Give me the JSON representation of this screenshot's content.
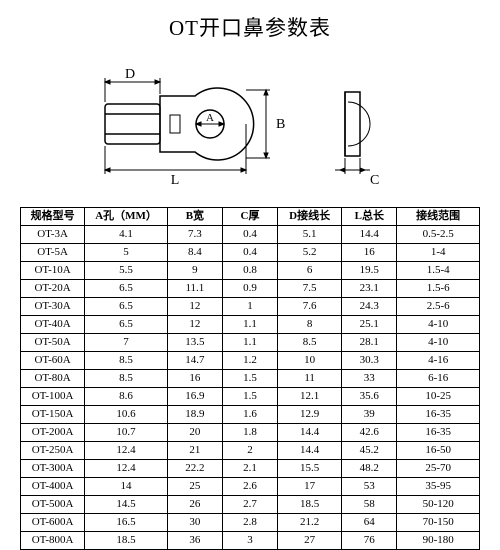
{
  "title": "OT开口鼻参数表",
  "diagram": {
    "labels": {
      "D": "D",
      "A": "A",
      "B": "B",
      "L": "L",
      "C": "C"
    },
    "stroke": "#000000",
    "fill": "#ffffff"
  },
  "table": {
    "headers": {
      "model": "规格型号",
      "a": "A孔（MM）",
      "b": "B宽",
      "c": "C厚",
      "d": "D接线长",
      "l": "L总长",
      "range": "接线范围"
    },
    "rows": [
      {
        "model": "OT-3A",
        "a": "4.1",
        "b": "7.3",
        "c": "0.4",
        "d": "5.1",
        "l": "14.4",
        "range": "0.5-2.5"
      },
      {
        "model": "OT-5A",
        "a": "5",
        "b": "8.4",
        "c": "0.4",
        "d": "5.2",
        "l": "16",
        "range": "1-4"
      },
      {
        "model": "OT-10A",
        "a": "5.5",
        "b": "9",
        "c": "0.8",
        "d": "6",
        "l": "19.5",
        "range": "1.5-4"
      },
      {
        "model": "OT-20A",
        "a": "6.5",
        "b": "11.1",
        "c": "0.9",
        "d": "7.5",
        "l": "23.1",
        "range": "1.5-6"
      },
      {
        "model": "OT-30A",
        "a": "6.5",
        "b": "12",
        "c": "1",
        "d": "7.6",
        "l": "24.3",
        "range": "2.5-6"
      },
      {
        "model": "OT-40A",
        "a": "6.5",
        "b": "12",
        "c": "1.1",
        "d": "8",
        "l": "25.1",
        "range": "4-10"
      },
      {
        "model": "OT-50A",
        "a": "7",
        "b": "13.5",
        "c": "1.1",
        "d": "8.5",
        "l": "28.1",
        "range": "4-10"
      },
      {
        "model": "OT-60A",
        "a": "8.5",
        "b": "14.7",
        "c": "1.2",
        "d": "10",
        "l": "30.3",
        "range": "4-16"
      },
      {
        "model": "OT-80A",
        "a": "8.5",
        "b": "16",
        "c": "1.5",
        "d": "11",
        "l": "33",
        "range": "6-16"
      },
      {
        "model": "OT-100A",
        "a": "8.6",
        "b": "16.9",
        "c": "1.5",
        "d": "12.1",
        "l": "35.6",
        "range": "10-25"
      },
      {
        "model": "OT-150A",
        "a": "10.6",
        "b": "18.9",
        "c": "1.6",
        "d": "12.9",
        "l": "39",
        "range": "16-35"
      },
      {
        "model": "OT-200A",
        "a": "10.7",
        "b": "20",
        "c": "1.8",
        "d": "14.4",
        "l": "42.6",
        "range": "16-35"
      },
      {
        "model": "OT-250A",
        "a": "12.4",
        "b": "21",
        "c": "2",
        "d": "14.4",
        "l": "45.2",
        "range": "16-50"
      },
      {
        "model": "OT-300A",
        "a": "12.4",
        "b": "22.2",
        "c": "2.1",
        "d": "15.5",
        "l": "48.2",
        "range": "25-70"
      },
      {
        "model": "OT-400A",
        "a": "14",
        "b": "25",
        "c": "2.6",
        "d": "17",
        "l": "53",
        "range": "35-95"
      },
      {
        "model": "OT-500A",
        "a": "14.5",
        "b": "26",
        "c": "2.7",
        "d": "18.5",
        "l": "58",
        "range": "50-120"
      },
      {
        "model": "OT-600A",
        "a": "16.5",
        "b": "30",
        "c": "2.8",
        "d": "21.2",
        "l": "64",
        "range": "70-150"
      },
      {
        "model": "OT-800A",
        "a": "18.5",
        "b": "36",
        "c": "3",
        "d": "27",
        "l": "76",
        "range": "90-180"
      }
    ]
  }
}
